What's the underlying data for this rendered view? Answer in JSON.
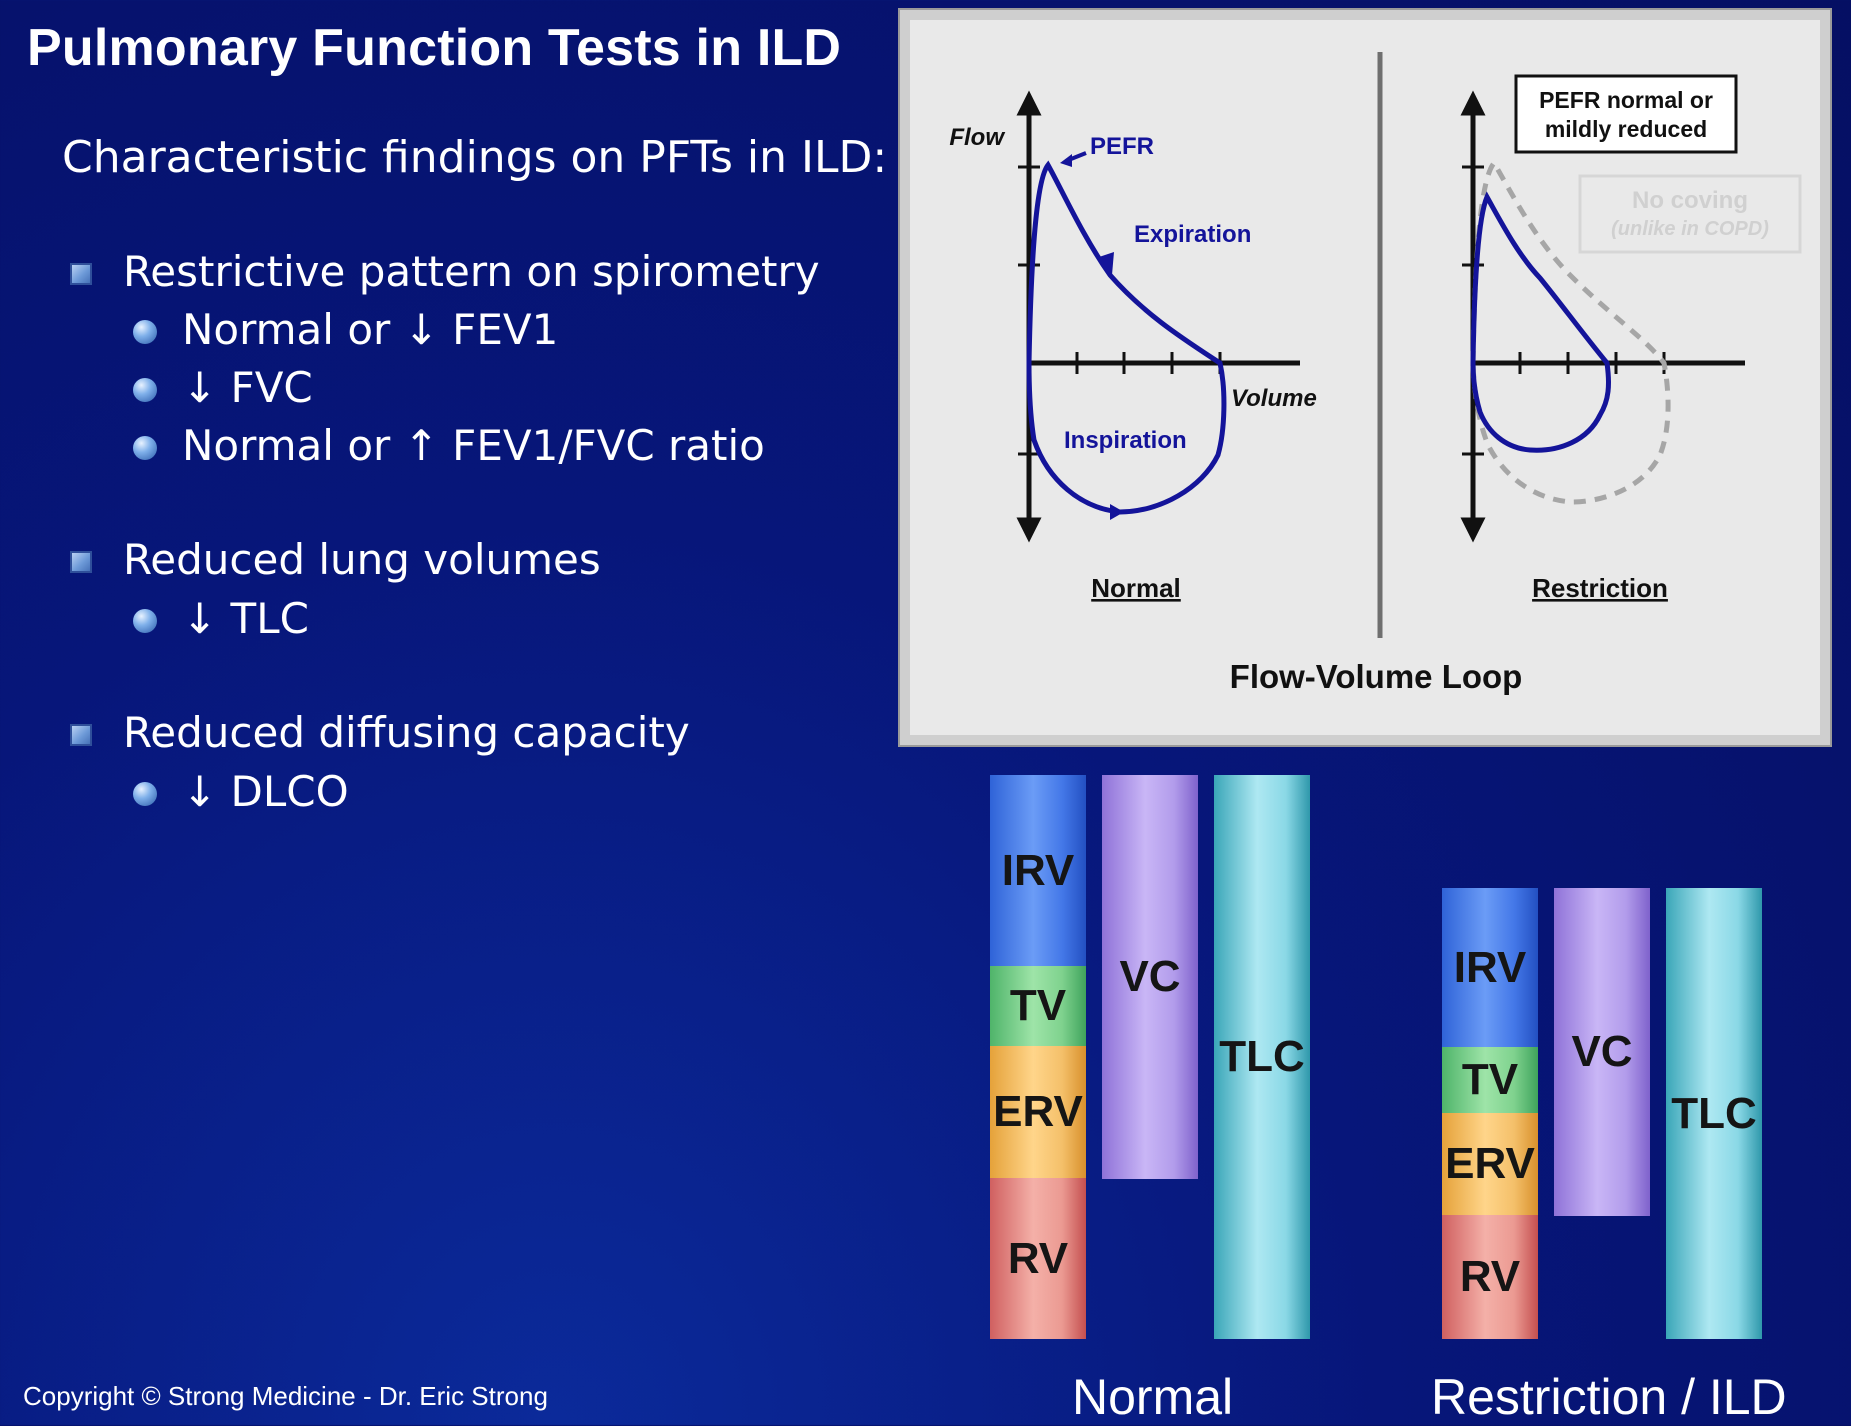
{
  "title": "Pulmonary Function Tests in ILD",
  "subtitle": "Characteristic findings on PFTs in ILD:",
  "findings": [
    {
      "heading": "Restrictive pattern on spirometry",
      "items": [
        "Normal or ↓ FEV1",
        "↓ FVC",
        "Normal or ↑ FEV1/FVC ratio"
      ]
    },
    {
      "heading": "Reduced lung volumes",
      "items": [
        "↓ TLC"
      ]
    },
    {
      "heading": "Reduced diffusing capacity",
      "items": [
        "↓ DLCO"
      ]
    }
  ],
  "flow_volume": {
    "caption": "Flow-Volume Loop",
    "flow_axis": "Flow",
    "volume_axis": "Volume",
    "normal_label": "Normal",
    "restriction_label": "Restriction",
    "pefr_label": "PEFR",
    "expiration_label": "Expiration",
    "inspiration_label": "Inspiration",
    "pefr_note_line1": "PEFR normal or",
    "pefr_note_line2": "mildly reduced",
    "coving_line1": "No coving",
    "coving_line2": "(unlike in COPD)",
    "curve_color": "#14149a"
  },
  "lung_volumes": {
    "normal": {
      "label": "Normal",
      "irv": "IRV",
      "tv": "TV",
      "erv": "ERV",
      "rv": "RV",
      "vc": "VC",
      "tlc": "TLC"
    },
    "restriction": {
      "label": "Restriction / ILD",
      "irv": "IRV",
      "tv": "TV",
      "erv": "ERV",
      "rv": "RV",
      "vc": "VC",
      "tlc": "TLC"
    }
  },
  "copyright": "Copyright © Strong Medicine - Dr. Eric Strong"
}
